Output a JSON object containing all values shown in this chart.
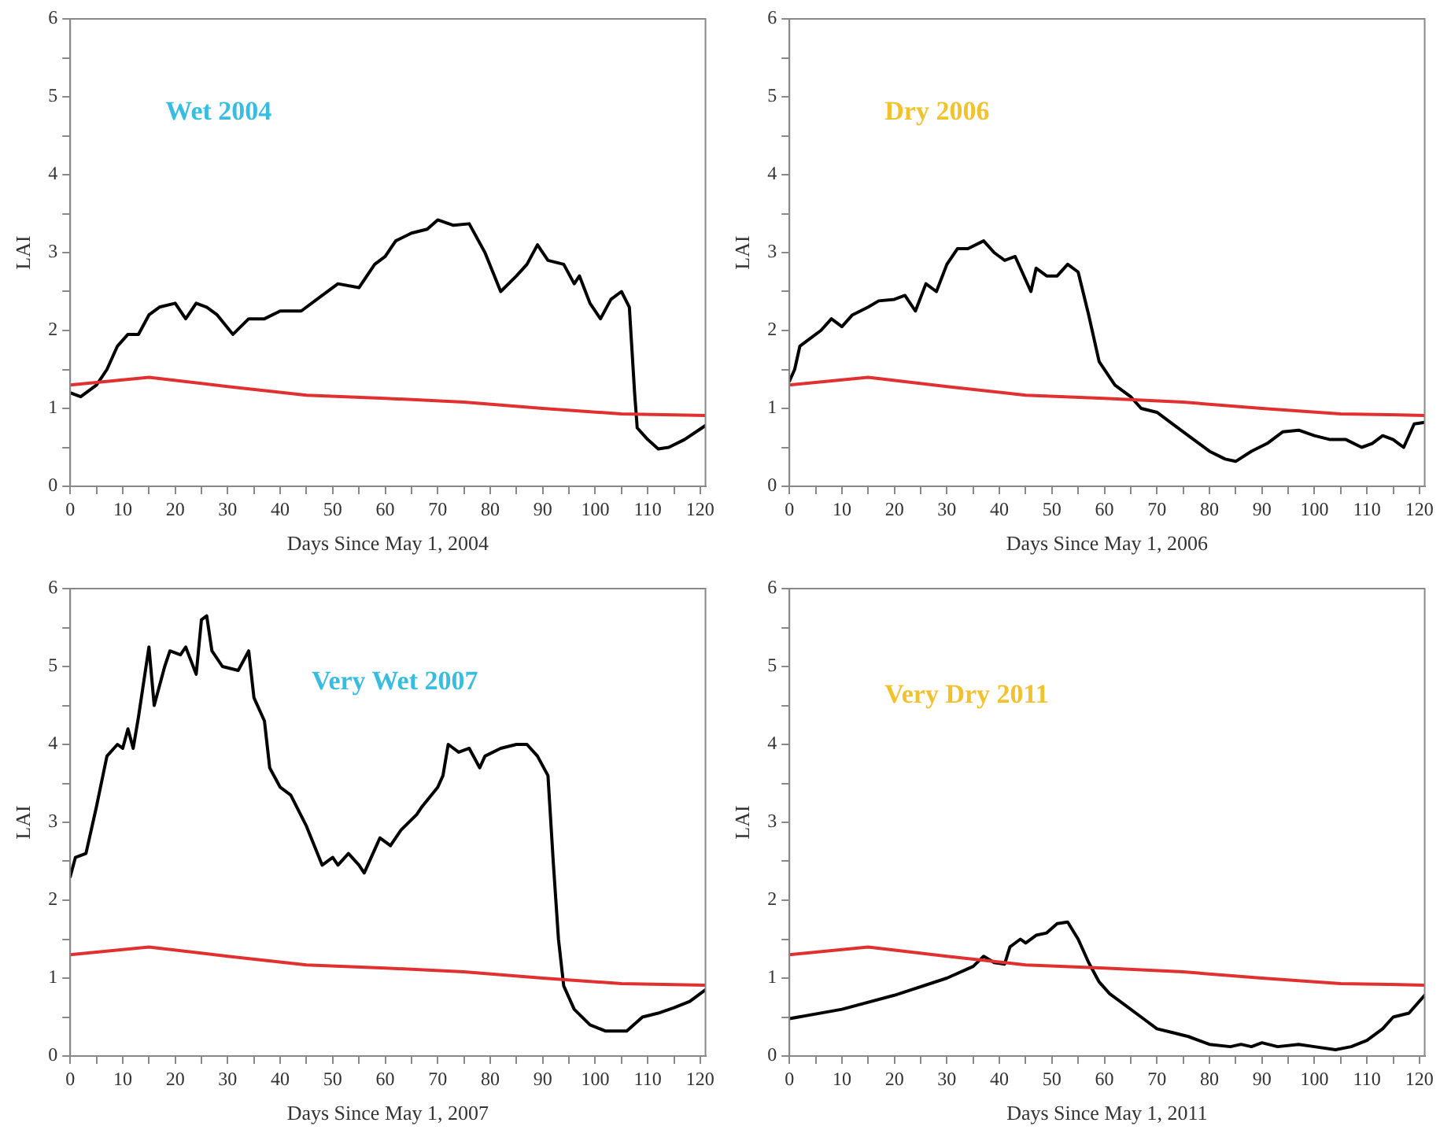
{
  "chart_data": [
    {
      "type": "line",
      "ylabel": "LAI",
      "xlabel": "Days Since May 1, 2004",
      "annotations": [
        "Wet 2004"
      ],
      "xlim": [
        0,
        121
      ],
      "ylim": [
        0,
        6
      ],
      "xticks": [
        0,
        {
          "value": 5,
          "label": null
        },
        10,
        {
          "value": 15,
          "label": null
        },
        20,
        {
          "value": 25,
          "label": null
        },
        30,
        {
          "value": 35,
          "label": null
        },
        40,
        {
          "value": 45,
          "label": null
        },
        50,
        {
          "value": 55,
          "label": null
        },
        60,
        {
          "value": 65,
          "label": null
        },
        70,
        {
          "value": 75,
          "label": null
        },
        80,
        {
          "value": 85,
          "label": null
        },
        90,
        {
          "value": 95,
          "label": null
        },
        100,
        {
          "value": 105,
          "label": null
        },
        110,
        {
          "value": 115,
          "label": null
        },
        120
      ],
      "yticks": [
        0,
        {
          "value": 0.5,
          "label": null
        },
        1,
        {
          "value": 1.5,
          "label": null
        },
        2,
        {
          "value": 2.5,
          "label": null
        },
        3,
        {
          "value": 3.5,
          "label": null
        },
        4,
        {
          "value": 4.5,
          "label": null
        },
        5,
        {
          "value": 5.5,
          "label": null
        },
        6
      ],
      "grid": false,
      "legend": false,
      "marker": "none",
      "line_style": "solid",
      "series": [
        {
          "color": "#e03030",
          "x": [
            0,
            15,
            30,
            45,
            60,
            75,
            90,
            105,
            121
          ],
          "values": [
            1.3,
            1.4,
            1.28,
            1.17,
            1.13,
            1.08,
            1.0,
            0.93,
            0.91
          ]
        },
        {
          "color": "#000000",
          "x": [
            0,
            2,
            5,
            7,
            9,
            11,
            13,
            15,
            17,
            20,
            22,
            24,
            26,
            28,
            31,
            34,
            37,
            40,
            44,
            48,
            51,
            55,
            58,
            60,
            62,
            65,
            68,
            70,
            73,
            76,
            79,
            82,
            85,
            87,
            89,
            91,
            94,
            96,
            97,
            99,
            101,
            103,
            105,
            106.5,
            107.5,
            108,
            110,
            112,
            114,
            117,
            121
          ],
          "values": [
            1.2,
            1.15,
            1.3,
            1.5,
            1.8,
            1.95,
            1.95,
            2.2,
            2.3,
            2.35,
            2.15,
            2.35,
            2.3,
            2.2,
            1.95,
            2.15,
            2.15,
            2.25,
            2.25,
            2.45,
            2.6,
            2.55,
            2.85,
            2.95,
            3.15,
            3.25,
            3.3,
            3.42,
            3.35,
            3.37,
            3.0,
            2.5,
            2.7,
            2.85,
            3.1,
            2.9,
            2.85,
            2.6,
            2.7,
            2.35,
            2.15,
            2.4,
            2.5,
            2.3,
            1.2,
            0.75,
            0.6,
            0.48,
            0.5,
            0.6,
            0.78
          ]
        }
      ]
    },
    {
      "type": "line",
      "ylabel": "LAI",
      "xlabel": "Days Since May 1, 2006",
      "annotations": [
        "Dry 2006"
      ],
      "xlim": [
        0,
        121
      ],
      "ylim": [
        0,
        6
      ],
      "xticks": [
        0,
        {
          "value": 5,
          "label": null
        },
        10,
        {
          "value": 15,
          "label": null
        },
        20,
        {
          "value": 25,
          "label": null
        },
        30,
        {
          "value": 35,
          "label": null
        },
        40,
        {
          "value": 45,
          "label": null
        },
        50,
        {
          "value": 55,
          "label": null
        },
        60,
        {
          "value": 65,
          "label": null
        },
        70,
        {
          "value": 75,
          "label": null
        },
        80,
        {
          "value": 85,
          "label": null
        },
        90,
        {
          "value": 95,
          "label": null
        },
        100,
        {
          "value": 105,
          "label": null
        },
        110,
        {
          "value": 115,
          "label": null
        },
        120
      ],
      "yticks": [
        0,
        {
          "value": 0.5,
          "label": null
        },
        1,
        {
          "value": 1.5,
          "label": null
        },
        2,
        {
          "value": 2.5,
          "label": null
        },
        3,
        {
          "value": 3.5,
          "label": null
        },
        4,
        {
          "value": 4.5,
          "label": null
        },
        5,
        {
          "value": 5.5,
          "label": null
        },
        6
      ],
      "grid": false,
      "legend": false,
      "marker": "none",
      "line_style": "solid",
      "series": [
        {
          "color": "#e03030",
          "x": [
            0,
            15,
            30,
            45,
            60,
            75,
            90,
            105,
            121
          ],
          "values": [
            1.3,
            1.4,
            1.28,
            1.17,
            1.13,
            1.08,
            1.0,
            0.93,
            0.91
          ]
        },
        {
          "color": "#000000",
          "x": [
            0,
            1,
            2,
            4,
            6,
            8,
            10,
            12,
            15,
            17,
            20,
            22,
            24,
            26,
            28,
            30,
            32,
            34,
            37,
            39,
            41,
            43,
            46,
            47,
            49,
            51,
            53,
            55,
            57,
            59,
            62,
            65,
            67,
            70,
            73,
            77,
            80,
            83,
            85,
            88,
            91,
            94,
            97,
            100,
            103,
            106,
            109,
            111,
            113,
            115,
            117,
            119,
            121
          ],
          "values": [
            1.35,
            1.5,
            1.8,
            1.9,
            2.0,
            2.15,
            2.05,
            2.2,
            2.3,
            2.38,
            2.4,
            2.45,
            2.25,
            2.6,
            2.5,
            2.85,
            3.05,
            3.05,
            3.15,
            3.0,
            2.9,
            2.95,
            2.5,
            2.8,
            2.7,
            2.7,
            2.85,
            2.75,
            2.2,
            1.6,
            1.3,
            1.15,
            1.0,
            0.95,
            0.8,
            0.6,
            0.45,
            0.35,
            0.32,
            0.45,
            0.55,
            0.7,
            0.72,
            0.65,
            0.6,
            0.6,
            0.5,
            0.55,
            0.65,
            0.6,
            0.5,
            0.8,
            0.82
          ]
        }
      ]
    },
    {
      "type": "line",
      "ylabel": "LAI",
      "xlabel": "Days Since May 1, 2007",
      "annotations": [
        "Very Wet 2007"
      ],
      "xlim": [
        0,
        121
      ],
      "ylim": [
        0,
        6
      ],
      "xticks": [
        0,
        {
          "value": 5,
          "label": null
        },
        10,
        {
          "value": 15,
          "label": null
        },
        20,
        {
          "value": 25,
          "label": null
        },
        30,
        {
          "value": 35,
          "label": null
        },
        40,
        {
          "value": 45,
          "label": null
        },
        50,
        {
          "value": 55,
          "label": null
        },
        60,
        {
          "value": 65,
          "label": null
        },
        70,
        {
          "value": 75,
          "label": null
        },
        80,
        {
          "value": 85,
          "label": null
        },
        90,
        {
          "value": 95,
          "label": null
        },
        100,
        {
          "value": 105,
          "label": null
        },
        110,
        {
          "value": 115,
          "label": null
        },
        120
      ],
      "yticks": [
        0,
        {
          "value": 0.5,
          "label": null
        },
        1,
        {
          "value": 1.5,
          "label": null
        },
        2,
        {
          "value": 2.5,
          "label": null
        },
        3,
        {
          "value": 3.5,
          "label": null
        },
        4,
        {
          "value": 4.5,
          "label": null
        },
        5,
        {
          "value": 5.5,
          "label": null
        },
        6
      ],
      "grid": false,
      "legend": false,
      "marker": "none",
      "line_style": "solid",
      "series": [
        {
          "color": "#e03030",
          "x": [
            0,
            15,
            30,
            45,
            60,
            75,
            90,
            105,
            121
          ],
          "values": [
            1.3,
            1.4,
            1.28,
            1.17,
            1.13,
            1.08,
            1.0,
            0.93,
            0.91
          ]
        },
        {
          "color": "#000000",
          "x": [
            0,
            1,
            3,
            5,
            7,
            9,
            10,
            11,
            12,
            13,
            15,
            16,
            18,
            19,
            21,
            22,
            24,
            25,
            26,
            27,
            29,
            32,
            34,
            35,
            37,
            38,
            40,
            42,
            45,
            48,
            50,
            51,
            53,
            55,
            56,
            58,
            59,
            61,
            63,
            66,
            67,
            70,
            71,
            72,
            74,
            76,
            78,
            79,
            82,
            85,
            87,
            89,
            91,
            92,
            93,
            94,
            96,
            99,
            102,
            106,
            109,
            112,
            115,
            118,
            121
          ],
          "values": [
            2.3,
            2.55,
            2.6,
            3.2,
            3.85,
            4.0,
            3.95,
            4.2,
            3.95,
            4.35,
            5.25,
            4.5,
            5.0,
            5.2,
            5.15,
            5.25,
            4.9,
            5.6,
            5.65,
            5.2,
            5.0,
            4.95,
            5.2,
            4.6,
            4.3,
            3.7,
            3.45,
            3.35,
            2.95,
            2.45,
            2.55,
            2.45,
            2.6,
            2.45,
            2.35,
            2.65,
            2.8,
            2.7,
            2.9,
            3.1,
            3.2,
            3.45,
            3.6,
            4.0,
            3.9,
            3.95,
            3.7,
            3.85,
            3.95,
            4.0,
            4.0,
            3.85,
            3.6,
            2.5,
            1.5,
            0.9,
            0.6,
            0.4,
            0.32,
            0.32,
            0.5,
            0.55,
            0.62,
            0.7,
            0.85
          ]
        }
      ]
    },
    {
      "type": "line",
      "ylabel": "LAI",
      "xlabel": "Days Since May 1, 2011",
      "annotations": [
        "Very Dry 2011"
      ],
      "xlim": [
        0,
        121
      ],
      "ylim": [
        0,
        6
      ],
      "xticks": [
        0,
        {
          "value": 5,
          "label": null
        },
        10,
        {
          "value": 15,
          "label": null
        },
        20,
        {
          "value": 25,
          "label": null
        },
        30,
        {
          "value": 35,
          "label": null
        },
        40,
        {
          "value": 45,
          "label": null
        },
        50,
        {
          "value": 55,
          "label": null
        },
        60,
        {
          "value": 65,
          "label": null
        },
        70,
        {
          "value": 75,
          "label": null
        },
        80,
        {
          "value": 85,
          "label": null
        },
        90,
        {
          "value": 95,
          "label": null
        },
        100,
        {
          "value": 105,
          "label": null
        },
        110,
        {
          "value": 115,
          "label": null
        },
        120
      ],
      "yticks": [
        0,
        {
          "value": 0.5,
          "label": null
        },
        1,
        {
          "value": 1.5,
          "label": null
        },
        2,
        {
          "value": 2.5,
          "label": null
        },
        3,
        {
          "value": 3.5,
          "label": null
        },
        4,
        {
          "value": 4.5,
          "label": null
        },
        5,
        {
          "value": 5.5,
          "label": null
        },
        6
      ],
      "grid": false,
      "legend": false,
      "marker": "none",
      "line_style": "solid",
      "series": [
        {
          "color": "#e03030",
          "x": [
            0,
            15,
            30,
            45,
            60,
            75,
            90,
            105,
            121
          ],
          "values": [
            1.3,
            1.4,
            1.28,
            1.17,
            1.13,
            1.08,
            1.0,
            0.93,
            0.91
          ]
        },
        {
          "color": "#000000",
          "x": [
            0,
            10,
            20,
            30,
            35,
            37,
            39,
            41,
            42,
            44,
            45,
            47,
            49,
            51,
            53,
            55,
            57,
            59,
            61,
            64,
            67,
            70,
            73,
            76,
            80,
            84,
            86,
            88,
            90,
            93,
            97,
            100,
            104,
            107,
            110,
            113,
            115,
            118,
            121
          ],
          "values": [
            0.48,
            0.6,
            0.78,
            1.0,
            1.15,
            1.28,
            1.2,
            1.18,
            1.4,
            1.5,
            1.45,
            1.55,
            1.58,
            1.7,
            1.72,
            1.5,
            1.2,
            0.95,
            0.8,
            0.65,
            0.5,
            0.35,
            0.3,
            0.25,
            0.15,
            0.12,
            0.15,
            0.12,
            0.17,
            0.12,
            0.15,
            0.12,
            0.08,
            0.12,
            0.2,
            0.35,
            0.5,
            0.55,
            0.78
          ]
        }
      ]
    }
  ]
}
